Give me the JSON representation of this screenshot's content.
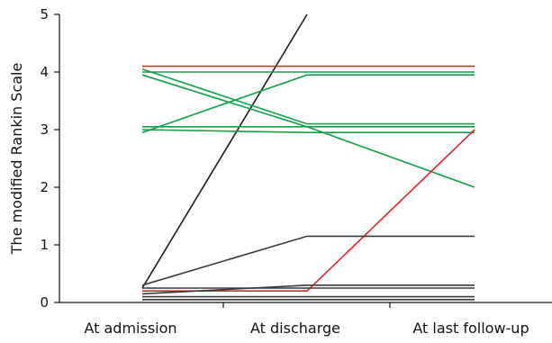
{
  "colors": {
    "black": "#1a1a1a",
    "red": "#e3242b",
    "green": "#12a14b",
    "gray": "#3a3a3a"
  },
  "chart_data": {
    "type": "line",
    "title": "",
    "xlabel": "",
    "ylabel": "The modified Rankin Scale",
    "categories": [
      "At admission",
      "At discharge",
      "At last follow-up"
    ],
    "ylim": [
      0,
      5
    ],
    "yticks": [
      "0",
      "1",
      "2",
      "3",
      "4",
      "5"
    ],
    "grid": false,
    "series": [
      {
        "color": "#1a1a1a",
        "values": [
          0.25,
          5.0,
          null
        ]
      },
      {
        "color": "#e3242b",
        "values": [
          4.1,
          4.1,
          4.1
        ]
      },
      {
        "color": "#12a14b",
        "values": [
          4.0,
          4.0,
          4.0
        ]
      },
      {
        "color": "#12a14b",
        "values": [
          2.95,
          3.95,
          3.95
        ]
      },
      {
        "color": "#12a14b",
        "values": [
          4.05,
          3.1,
          3.1
        ]
      },
      {
        "color": "#12a14b",
        "values": [
          3.95,
          3.05,
          2.0
        ]
      },
      {
        "color": "#12a14b",
        "values": [
          3.05,
          3.05,
          3.05
        ]
      },
      {
        "color": "#12a14b",
        "values": [
          3.0,
          2.95,
          2.95
        ]
      },
      {
        "color": "#e3242b",
        "values": [
          0.2,
          0.2,
          3.0
        ]
      },
      {
        "color": "#3a3a3a",
        "values": [
          0.3,
          1.15,
          1.15
        ]
      },
      {
        "color": "#3a3a3a",
        "values": [
          0.15,
          0.3,
          0.3
        ]
      },
      {
        "color": "#3a3a3a",
        "values": [
          0.25,
          0.25,
          0.25
        ]
      },
      {
        "color": "#3a3a3a",
        "values": [
          0.1,
          0.1,
          0.1
        ]
      },
      {
        "color": "#3a3a3a",
        "values": [
          0.05,
          0.05,
          0.05
        ]
      }
    ]
  }
}
